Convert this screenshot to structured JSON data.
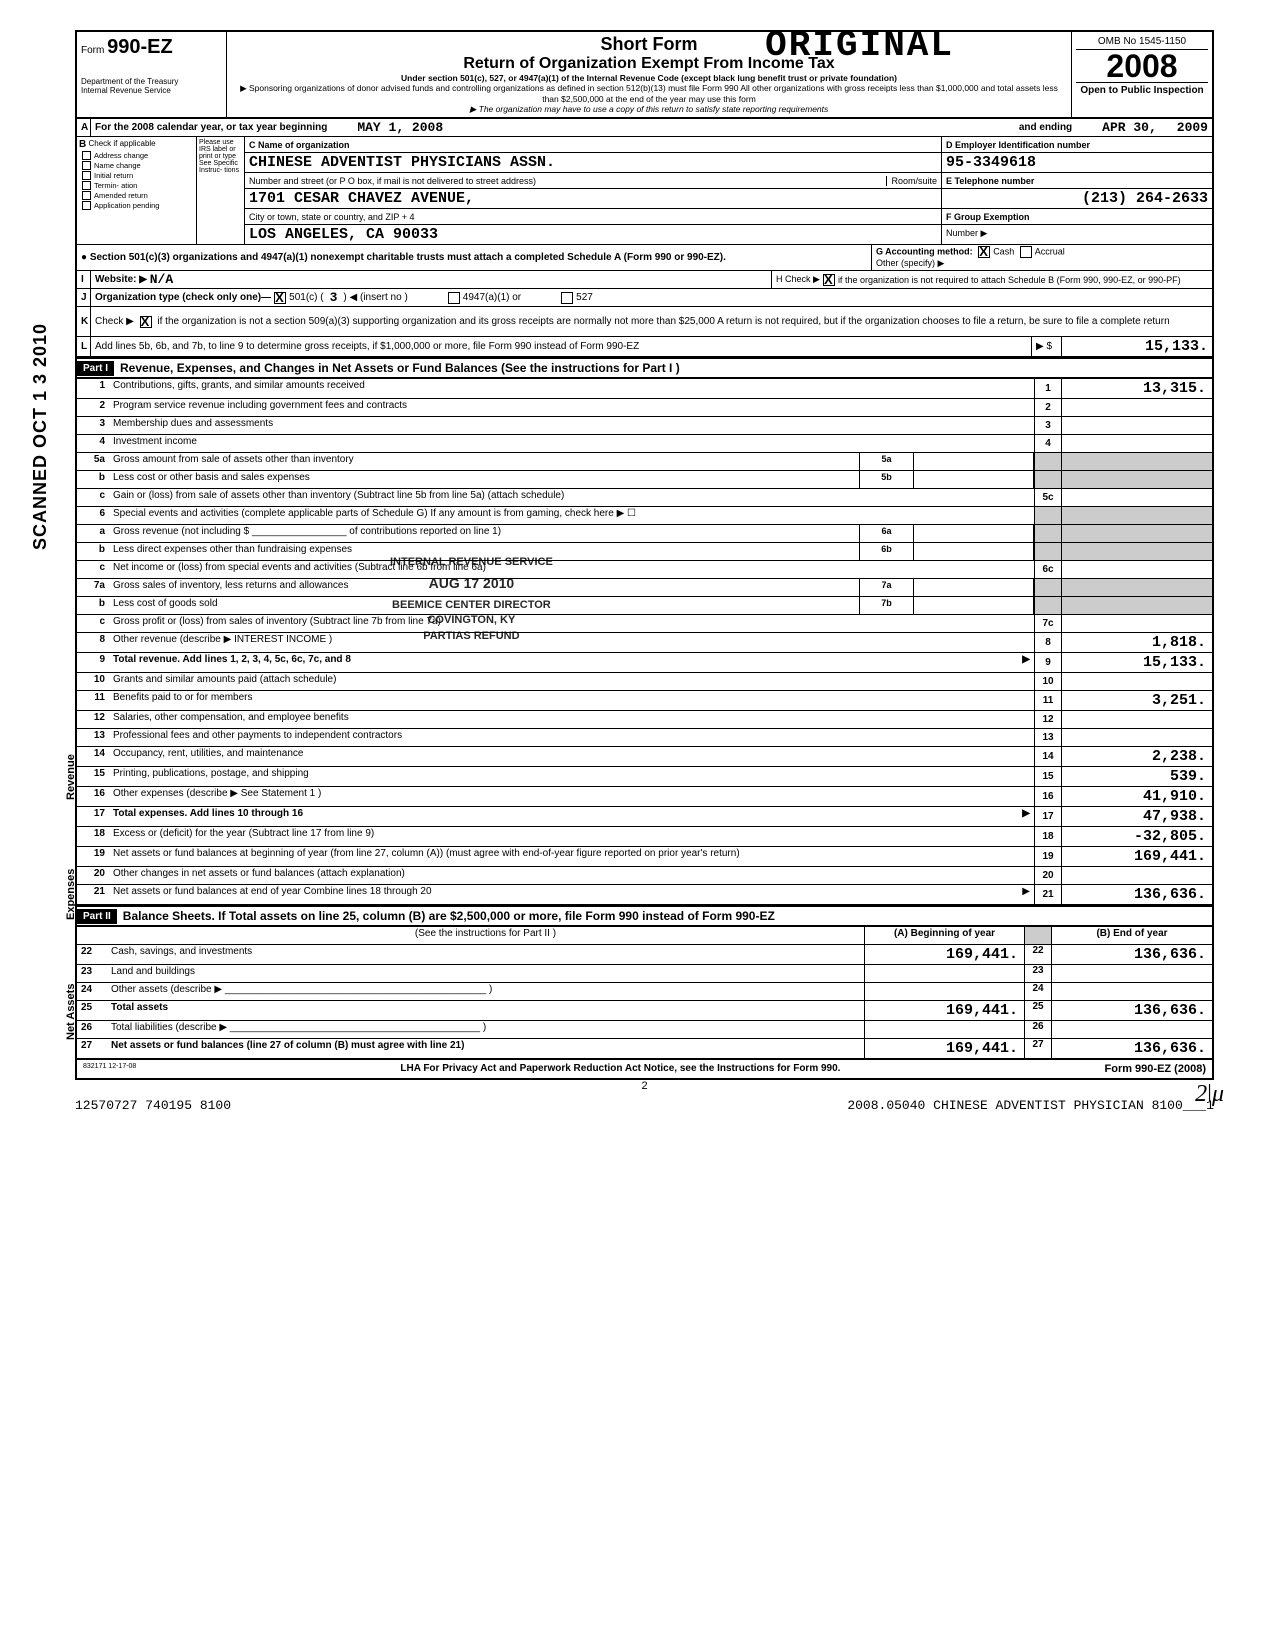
{
  "meta": {
    "stamp": "ORIGINAL",
    "scan_label": "SCANNED OCT 1 3 2010",
    "vert_rev": "Revenue",
    "vert_exp": "Expenses",
    "vert_net": "Net Assets",
    "form_word": "Form",
    "form_no": "990-EZ",
    "dept": "Department of the Treasury",
    "irs": "Internal Revenue Service",
    "title1": "Short Form",
    "title2": "Return of Organization Exempt From Income Tax",
    "subtitle": "Under section 501(c), 527, or 4947(a)(1) of the Internal Revenue Code (except black lung benefit trust or private foundation)",
    "sponsor": "▶ Sponsoring organizations of donor advised funds and controlling organizations as defined in section 512(b)(13) must file Form 990  All other organizations with gross receipts less than $1,000,000 and total assets less than $2,500,000 at the end of the year may use this form",
    "copy_note": "▶ The organization may have to use a copy of this return to satisfy state reporting requirements",
    "omb": "OMB No  1545-1150",
    "year": "2008",
    "open": "Open to Public Inspection"
  },
  "line_a": {
    "label": "A",
    "text": "For the 2008 calendar year, or tax year beginning",
    "begin": "MAY 1, 2008",
    "mid": "and ending",
    "end": "APR 30,",
    "end_year": "2009"
  },
  "section_b": {
    "b": "B",
    "check_hdr": "Check if applicable",
    "please": "Please use IRS label or print or type  See Specific Instruc- tions",
    "checks": [
      "Address change",
      "Name change",
      "Initial return",
      "Termin- ation",
      "Amended return",
      "Application pending"
    ],
    "c_label": "C Name of organization",
    "org_name": "CHINESE ADVENTIST PHYSICIANS ASSN.",
    "addr_label": "Number and street (or P O  box, if mail is not delivered to street address)",
    "room": "Room/suite",
    "street": "1701 CESAR CHAVEZ AVENUE,",
    "city_label": "City or town, state or country, and ZIP + 4",
    "city": "LOS ANGELES, CA   90033",
    "d_label": "D Employer Identification number",
    "ein": "95-3349618",
    "e_label": "E Telephone number",
    "phone": "(213) 264-2633",
    "f_label": "F Group Exemption",
    "f_num": "Number ▶"
  },
  "mid_block": {
    "sec_note": "● Section 501(c)(3) organizations and 4947(a)(1) nonexempt charitable trusts must attach a completed Schedule A (Form 990 or 990-EZ).",
    "g_label": "G  Accounting method:",
    "g_cash": "Cash",
    "g_accrual": "Accrual",
    "g_other": "Other (specify) ▶",
    "i": "I",
    "website_label": "Website: ▶",
    "website": "N/A",
    "h_label": "H  Check ▶",
    "h_text": "if the organization is not required to attach Schedule B (Form 990, 990-EZ, or 990-PF)",
    "j": "J",
    "j_label": "Organization type  (check only one)—",
    "j_501c": "501(c) (",
    "j_num": "3",
    "j_insert": ") ◀ (insert no )",
    "j_4947": "4947(a)(1) or",
    "j_527": "527",
    "k": "K",
    "k_text1": "Check ▶",
    "k_text2": "if the organization is not a section 509(a)(3) supporting organization and its gross receipts are normally not more than $25,000  A return is not required, but if the organization chooses to file a return, be sure to file a complete return",
    "l": "L",
    "l_text": "Add lines 5b, 6b, and 7b, to line 9 to determine gross receipts, if $1,000,000 or more, file Form 990 instead of Form 990-EZ",
    "l_arrow": "▶   $",
    "l_amt": "15,133."
  },
  "part1": {
    "hdr": "Part I",
    "title": "Revenue, Expenses, and Changes in Net Assets or Fund Balances (See the instructions for Part I )",
    "lines": [
      {
        "n": "1",
        "d": "Contributions, gifts, grants, and similar amounts received",
        "box": "1",
        "amt": "13,315."
      },
      {
        "n": "2",
        "d": "Program service revenue including government fees and contracts",
        "box": "2",
        "amt": ""
      },
      {
        "n": "3",
        "d": "Membership dues and assessments",
        "box": "3",
        "amt": ""
      },
      {
        "n": "4",
        "d": "Investment income",
        "box": "4",
        "amt": ""
      },
      {
        "n": "5a",
        "d": "Gross amount from sale of assets other than inventory",
        "sub": "5a"
      },
      {
        "n": "b",
        "d": "Less  cost or other basis and sales expenses",
        "sub": "5b"
      },
      {
        "n": "c",
        "d": "Gain or (loss) from sale of assets other than inventory (Subtract line 5b from line 5a) (attach schedule)",
        "box": "5c",
        "amt": ""
      },
      {
        "n": "6",
        "d": "Special events and activities (complete applicable parts of Schedule G)  If any amount is from gaming, check here ▶ ☐"
      },
      {
        "n": "a",
        "d": "Gross revenue (not including $ _________________ of contributions reported on line 1)",
        "sub": "6a"
      },
      {
        "n": "b",
        "d": "Less  direct expenses other than fundraising expenses",
        "sub": "6b"
      },
      {
        "n": "c",
        "d": "Net income or (loss) from special events and activities (Subtract line 6b from line 6a)",
        "box": "6c",
        "amt": ""
      },
      {
        "n": "7a",
        "d": "Gross sales of inventory, less returns and allowances",
        "sub": "7a"
      },
      {
        "n": "b",
        "d": "Less  cost of goods sold",
        "sub": "7b"
      },
      {
        "n": "c",
        "d": "Gross profit or (loss) from sales of inventory (Subtract line 7b from line 7a)",
        "box": "7c",
        "amt": ""
      },
      {
        "n": "8",
        "d": "Other revenue (describe ▶  INTEREST INCOME",
        "box": "8",
        "amt": "1,818.",
        "paren": ")"
      },
      {
        "n": "9",
        "d": "Total revenue. Add lines 1, 2, 3, 4, 5c, 6c, 7c, and 8",
        "box": "9",
        "amt": "15,133.",
        "arrow": "▶",
        "bold": true
      },
      {
        "n": "10",
        "d": "Grants and similar amounts paid (attach schedule)",
        "box": "10",
        "amt": ""
      },
      {
        "n": "11",
        "d": "Benefits paid to or for members",
        "box": "11",
        "amt": "3,251."
      },
      {
        "n": "12",
        "d": "Salaries, other compensation, and employee benefits",
        "box": "12",
        "amt": ""
      },
      {
        "n": "13",
        "d": "Professional fees and other payments to independent contractors",
        "box": "13",
        "amt": ""
      },
      {
        "n": "14",
        "d": "Occupancy, rent, utilities, and maintenance",
        "box": "14",
        "amt": "2,238."
      },
      {
        "n": "15",
        "d": "Printing, publications, postage, and shipping",
        "box": "15",
        "amt": "539."
      },
      {
        "n": "16",
        "d": "Other expenses (describe ▶                                                                                    See Statement 1 )",
        "box": "16",
        "amt": "41,910."
      },
      {
        "n": "17",
        "d": "Total expenses. Add lines 10 through 16",
        "box": "17",
        "amt": "47,938.",
        "arrow": "▶",
        "bold": true
      },
      {
        "n": "18",
        "d": "Excess or (deficit) for the year (Subtract line 17 from line 9)",
        "box": "18",
        "amt": "-32,805."
      },
      {
        "n": "19",
        "d": "Net assets or fund balances at beginning of year (from line 27, column (A)) (must agree with end-of-year figure reported on prior year's return)",
        "box": "19",
        "amt": "169,441."
      },
      {
        "n": "20",
        "d": "Other changes in net assets or fund balances (attach explanation)",
        "box": "20",
        "amt": ""
      },
      {
        "n": "21",
        "d": "Net assets or fund balances at end of year  Combine lines 18 through 20",
        "box": "21",
        "amt": "136,636.",
        "arrow": "▶"
      }
    ]
  },
  "part2": {
    "hdr": "Part II",
    "title": "Balance Sheets.   If Total assets on line 25, column (B) are $2,500,000 or more, file Form 990 instead of Form 990-EZ",
    "instr": "(See the instructions for Part II )",
    "col_a": "(A) Beginning of year",
    "col_b": "(B) End of year",
    "rows": [
      {
        "n": "22",
        "d": "Cash, savings, and investments",
        "a": "169,441.",
        "box": "22",
        "b": "136,636."
      },
      {
        "n": "23",
        "d": "Land and buildings",
        "a": "",
        "box": "23",
        "b": ""
      },
      {
        "n": "24",
        "d": "Other assets (describe ▶ _______________________________________________ )",
        "a": "",
        "box": "24",
        "b": ""
      },
      {
        "n": "25",
        "d": "Total assets",
        "a": "169,441.",
        "box": "25",
        "b": "136,636.",
        "bold": true
      },
      {
        "n": "26",
        "d": "Total liabilities (describe ▶ _____________________________________________ )",
        "a": "",
        "box": "26",
        "b": ""
      },
      {
        "n": "27",
        "d": "Net assets or fund balances (line 27 of column (B) must agree with line 21)",
        "a": "169,441.",
        "box": "27",
        "b": "136,636.",
        "bold": true
      }
    ]
  },
  "footer": {
    "code": "832171 12-17-08",
    "lha": "LHA   For Privacy Act and Paperwork Reduction Act Notice, see the Instructions for Form 990.",
    "page": "2",
    "form": "Form 990-EZ (2008)",
    "bottom_left": "12570727 740195 8100",
    "bottom_right": "2008.05040 CHINESE ADVENTIST PHYSICIAN 8100___1",
    "hand": "2ǀμ"
  },
  "irs_stamp": {
    "l1": "INTERNAL REVENUE SERVICE",
    "l2": "",
    "l3": "AUG 17 2010",
    "l4": "BEEMICE CENTER DIRECTOR",
    "l5": "COVINGTON, KY",
    "l6": "PARTIAS REFUND"
  }
}
